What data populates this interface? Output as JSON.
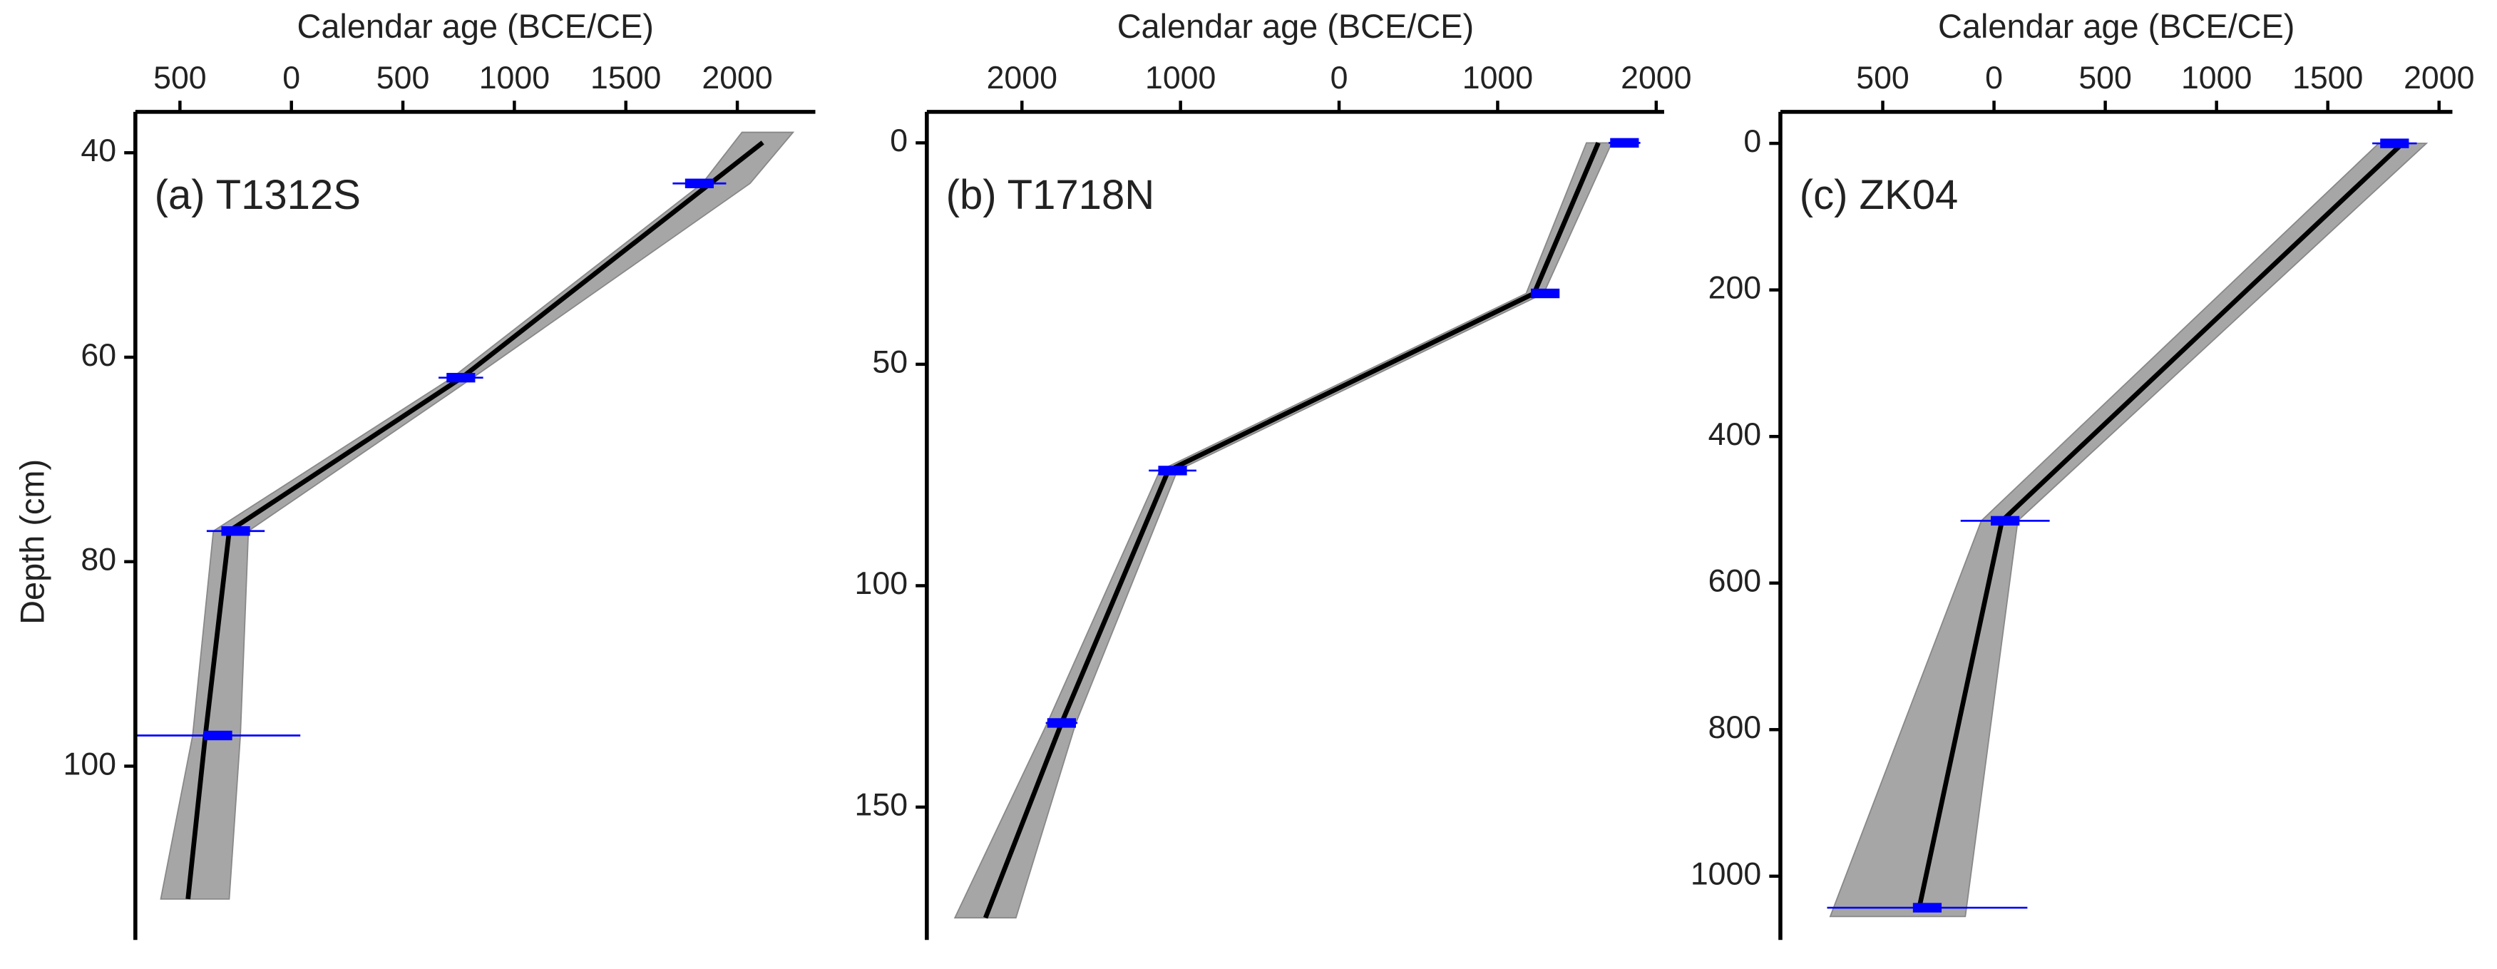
{
  "chart_data": [
    {
      "type": "line",
      "xlabel": "Calendar age (BCE/CE)",
      "ylabel": "Depth (cm)",
      "label": "(a) T1312S",
      "xlim": [
        -700,
        2350
      ],
      "xticks": [
        {
          "value": -500,
          "label": "500"
        },
        0,
        500,
        1000,
        1500,
        2000
      ],
      "ylim": [
        36,
        117
      ],
      "yticks": [
        40,
        60,
        80,
        100
      ],
      "y_inverted": true,
      "depth": [
        39,
        62,
        77,
        97,
        113
      ],
      "age": [
        2114,
        764,
        -279,
        -386,
        -464
      ],
      "color": "#000000",
      "band": {
        "depth": [
          38,
          43,
          62,
          77,
          97,
          113
        ],
        "lower": [
          2021,
          1843,
          721,
          -350,
          -443,
          -586
        ],
        "upper": [
          2250,
          2057,
          814,
          -193,
          -229,
          -279
        ],
        "color": "#a6a6a6"
      },
      "dates": {
        "depth": [
          43,
          62,
          77,
          97
        ],
        "age": [
          1830,
          760,
          -250,
          -330
        ],
        "error": [
          120,
          100,
          130,
          370
        ],
        "color": "#0000ff"
      }
    },
    {
      "type": "line",
      "xlabel": "Calendar age (BCE/CE)",
      "label": "(b) T1718N",
      "xlim": [
        -2600,
        2050
      ],
      "xticks": [
        {
          "value": -2000,
          "label": "2000"
        },
        {
          "value": -1000,
          "label": "1000"
        },
        0,
        1000,
        2000
      ],
      "ylim": [
        -7,
        180
      ],
      "yticks": [
        0,
        50,
        100,
        150
      ],
      "y_inverted": true,
      "depth": [
        0,
        34,
        74,
        131,
        175
      ],
      "age": [
        1635,
        1230,
        -1077,
        -1750,
        -2230
      ],
      "color": "#000000",
      "band": {
        "depth": [
          0,
          34,
          74,
          131,
          175
        ],
        "lower": [
          1560,
          1180,
          -1130,
          -1840,
          -2423
        ],
        "upper": [
          1720,
          1290,
          -1020,
          -1660,
          -2038
        ],
        "color": "#a6a6a6"
      },
      "dates": {
        "depth": [
          0,
          34,
          74,
          131
        ],
        "age": [
          1800,
          1300,
          -1050,
          -1750
        ],
        "error": [
          100,
          50,
          150,
          100
        ],
        "color": "#0000ff"
      }
    },
    {
      "type": "line",
      "xlabel": "Calendar age (BCE/CE)",
      "label": "(c) ZK04",
      "xlim": [
        -960,
        2060
      ],
      "xticks": [
        {
          "value": -500,
          "label": "500"
        },
        0,
        500,
        1000,
        1500,
        2000
      ],
      "ylim": [
        -43,
        1087
      ],
      "yticks": [
        0,
        200,
        400,
        600,
        800,
        1000
      ],
      "y_inverted": true,
      "depth": [
        0,
        515,
        1043
      ],
      "age": [
        1836,
        36,
        -336
      ],
      "color": "#000000",
      "band": {
        "depth": [
          0,
          515,
          1055
        ],
        "lower": [
          1729,
          -57,
          -736
        ],
        "upper": [
          1943,
          107,
          -129
        ],
        "color": "#a6a6a6"
      },
      "dates": {
        "depth": [
          0,
          515,
          1043
        ],
        "age": [
          1800,
          50,
          -300
        ],
        "error": [
          100,
          200,
          450
        ],
        "color": "#0000ff"
      }
    }
  ]
}
